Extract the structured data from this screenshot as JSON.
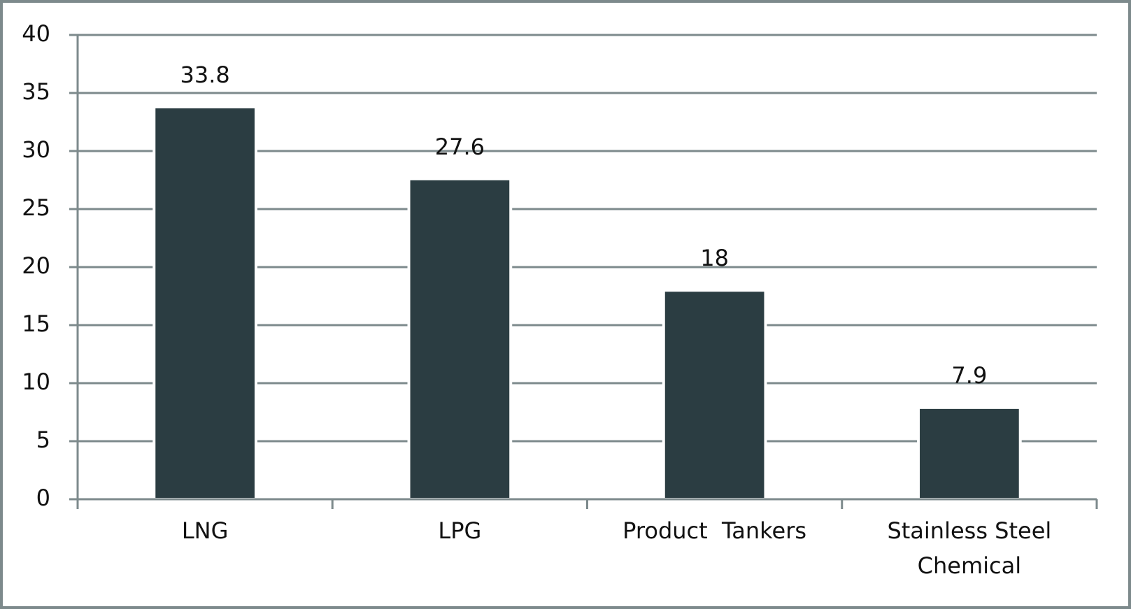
{
  "chart_data": {
    "type": "bar",
    "categories": [
      "LNG",
      "LPG",
      "Product  Tankers",
      "Stainless Steel Chemical"
    ],
    "values": [
      33.8,
      27.6,
      18,
      7.9
    ],
    "color": "#2b3d42",
    "ylim": [
      0,
      40
    ],
    "yticks": [
      0,
      5,
      10,
      15,
      20,
      25,
      30,
      35,
      40
    ],
    "grid": true
  }
}
